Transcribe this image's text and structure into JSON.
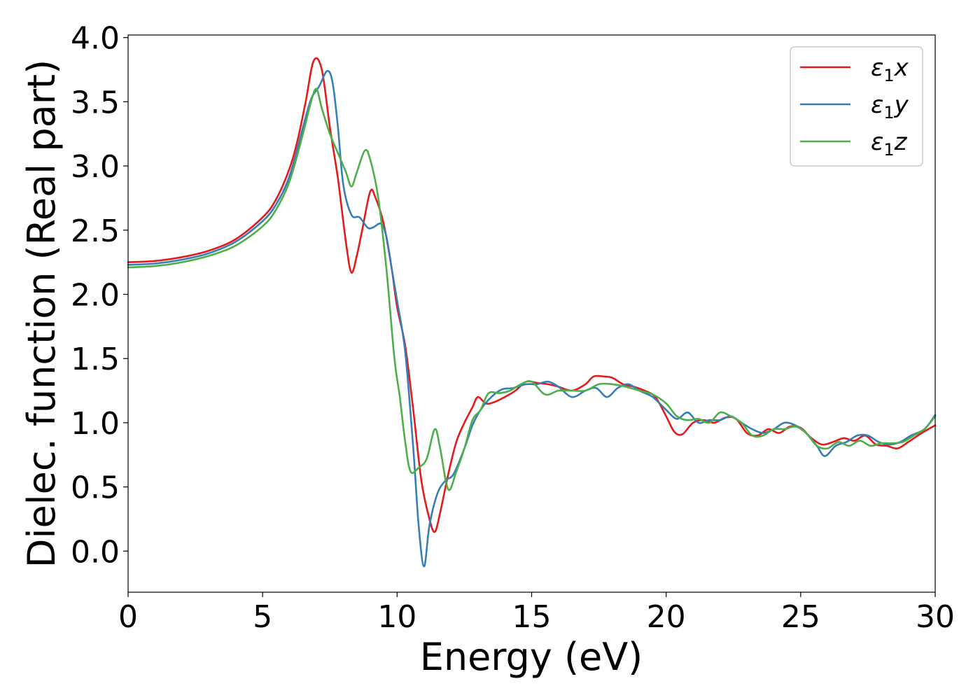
{
  "chart_data": {
    "type": "line",
    "title": "",
    "xlabel": "Energy (eV)",
    "ylabel": "Dielec. function (Real part)",
    "xlim": [
      0,
      30
    ],
    "ylim": [
      -0.32,
      4.02
    ],
    "xticks": [
      0,
      5,
      10,
      15,
      20,
      25,
      30
    ],
    "yticks": [
      0.0,
      0.5,
      1.0,
      1.5,
      2.0,
      2.5,
      3.0,
      3.5,
      4.0
    ],
    "xtick_labels": [
      "0",
      "5",
      "10",
      "15",
      "20",
      "25",
      "30"
    ],
    "ytick_labels": [
      "0.0",
      "0.5",
      "1.0",
      "1.5",
      "2.0",
      "2.5",
      "3.0",
      "3.5",
      "4.0"
    ],
    "grid": false,
    "legend_position": "top-right",
    "series": [
      {
        "name": "ε1x",
        "legend": {
          "symbol": "ε",
          "sub": "1",
          "suffix": "x"
        },
        "color": "#e41a1c",
        "x": [
          0,
          1,
          2,
          3,
          4,
          5,
          5.5,
          6,
          6.3,
          6.6,
          6.9,
          7.2,
          7.5,
          7.8,
          8.1,
          8.3,
          8.5,
          8.7,
          9.0,
          9.2,
          9.5,
          9.8,
          10.0,
          10.3,
          10.6,
          10.9,
          11.2,
          11.4,
          11.6,
          11.9,
          12.2,
          12.5,
          12.8,
          13.0,
          13.3,
          13.6,
          14.0,
          14.4,
          14.8,
          15.2,
          15.6,
          16.0,
          16.5,
          17.0,
          17.3,
          17.7,
          18.0,
          18.4,
          18.8,
          19.2,
          19.6,
          20.0,
          20.3,
          20.6,
          21.0,
          21.4,
          21.8,
          22.2,
          22.6,
          23.0,
          23.4,
          23.8,
          24.2,
          24.6,
          25.0,
          25.4,
          25.8,
          26.2,
          26.6,
          27.0,
          27.4,
          27.8,
          28.2,
          28.6,
          29.0,
          29.5,
          30.0
        ],
        "values": [
          2.25,
          2.26,
          2.29,
          2.34,
          2.43,
          2.6,
          2.74,
          2.98,
          3.2,
          3.5,
          3.82,
          3.75,
          3.3,
          2.9,
          2.4,
          2.17,
          2.3,
          2.5,
          2.8,
          2.75,
          2.55,
          2.2,
          1.9,
          1.6,
          1.1,
          0.55,
          0.25,
          0.15,
          0.3,
          0.6,
          0.85,
          1.0,
          1.12,
          1.2,
          1.15,
          1.16,
          1.2,
          1.25,
          1.32,
          1.31,
          1.3,
          1.28,
          1.25,
          1.3,
          1.36,
          1.36,
          1.35,
          1.3,
          1.28,
          1.25,
          1.2,
          1.05,
          0.93,
          0.91,
          1.0,
          1.02,
          1.0,
          1.04,
          1.03,
          0.92,
          0.9,
          0.95,
          0.92,
          0.97,
          0.96,
          0.88,
          0.83,
          0.85,
          0.88,
          0.86,
          0.9,
          0.83,
          0.82,
          0.8,
          0.85,
          0.92,
          0.98
        ]
      },
      {
        "name": "ε1y",
        "legend": {
          "symbol": "ε",
          "sub": "1",
          "suffix": "y"
        },
        "color": "#377eb8",
        "x": [
          0,
          1,
          2,
          3,
          4,
          5,
          5.5,
          6,
          6.5,
          6.8,
          7.1,
          7.4,
          7.6,
          7.8,
          8.0,
          8.3,
          8.6,
          8.9,
          9.1,
          9.4,
          9.6,
          9.8,
          10.0,
          10.3,
          10.6,
          10.8,
          11.0,
          11.2,
          11.5,
          11.8,
          12.1,
          12.5,
          12.8,
          13.1,
          13.5,
          13.9,
          14.3,
          14.8,
          15.2,
          15.6,
          16.0,
          16.5,
          17.0,
          17.4,
          17.8,
          18.2,
          18.6,
          19.0,
          19.5,
          20.0,
          20.4,
          20.8,
          21.2,
          21.6,
          22.0,
          22.4,
          22.8,
          23.2,
          23.6,
          24.0,
          24.4,
          24.8,
          25.2,
          25.6,
          25.9,
          26.3,
          26.7,
          27.1,
          27.5,
          27.9,
          28.3,
          28.7,
          29.1,
          29.6,
          30.0
        ],
        "values": [
          2.23,
          2.24,
          2.27,
          2.32,
          2.41,
          2.57,
          2.7,
          2.92,
          3.3,
          3.52,
          3.62,
          3.74,
          3.65,
          3.3,
          2.85,
          2.62,
          2.6,
          2.52,
          2.52,
          2.55,
          2.45,
          2.2,
          1.95,
          1.55,
          0.8,
          0.2,
          -0.12,
          0.2,
          0.45,
          0.55,
          0.6,
          0.8,
          0.98,
          1.1,
          1.2,
          1.26,
          1.27,
          1.3,
          1.3,
          1.32,
          1.28,
          1.2,
          1.25,
          1.27,
          1.2,
          1.27,
          1.3,
          1.25,
          1.2,
          1.1,
          1.03,
          1.08,
          1.0,
          1.02,
          1.02,
          1.05,
          1.0,
          0.95,
          0.92,
          0.95,
          1.0,
          0.98,
          0.92,
          0.82,
          0.74,
          0.82,
          0.85,
          0.9,
          0.9,
          0.85,
          0.83,
          0.85,
          0.9,
          0.95,
          1.06
        ]
      },
      {
        "name": "ε1z",
        "legend": {
          "symbol": "ε",
          "sub": "1",
          "suffix": "z"
        },
        "color": "#4daf4a",
        "x": [
          0,
          1,
          2,
          3,
          4,
          5,
          5.5,
          6,
          6.5,
          6.8,
          7.0,
          7.2,
          7.5,
          7.8,
          8.1,
          8.3,
          8.5,
          8.8,
          9.0,
          9.3,
          9.6,
          9.9,
          10.1,
          10.3,
          10.5,
          10.8,
          11.1,
          11.4,
          11.6,
          11.9,
          12.2,
          12.5,
          12.8,
          13.1,
          13.4,
          13.8,
          14.2,
          14.6,
          15.0,
          15.5,
          16.0,
          16.5,
          17.0,
          17.5,
          18.0,
          18.5,
          19.0,
          19.5,
          20.0,
          20.4,
          20.8,
          21.2,
          21.6,
          22.0,
          22.4,
          22.8,
          23.2,
          23.6,
          24.0,
          24.4,
          24.8,
          25.2,
          25.6,
          26.0,
          26.4,
          26.8,
          27.2,
          27.6,
          28.0,
          28.4,
          28.8,
          29.2,
          29.6,
          30.0
        ],
        "values": [
          2.21,
          2.22,
          2.25,
          2.3,
          2.38,
          2.53,
          2.66,
          2.88,
          3.25,
          3.5,
          3.6,
          3.45,
          3.25,
          3.1,
          2.95,
          2.84,
          2.95,
          3.12,
          3.05,
          2.75,
          2.2,
          1.5,
          1.2,
          0.85,
          0.62,
          0.65,
          0.72,
          0.95,
          0.8,
          0.48,
          0.62,
          0.8,
          1.02,
          1.1,
          1.23,
          1.23,
          1.25,
          1.3,
          1.32,
          1.22,
          1.25,
          1.25,
          1.25,
          1.3,
          1.3,
          1.28,
          1.25,
          1.22,
          1.15,
          1.05,
          1.02,
          1.03,
          1.0,
          1.08,
          1.05,
          1.0,
          0.9,
          0.9,
          0.95,
          0.95,
          0.97,
          0.92,
          0.82,
          0.8,
          0.85,
          0.82,
          0.86,
          0.82,
          0.84,
          0.84,
          0.85,
          0.9,
          0.95,
          1.05
        ]
      }
    ]
  }
}
